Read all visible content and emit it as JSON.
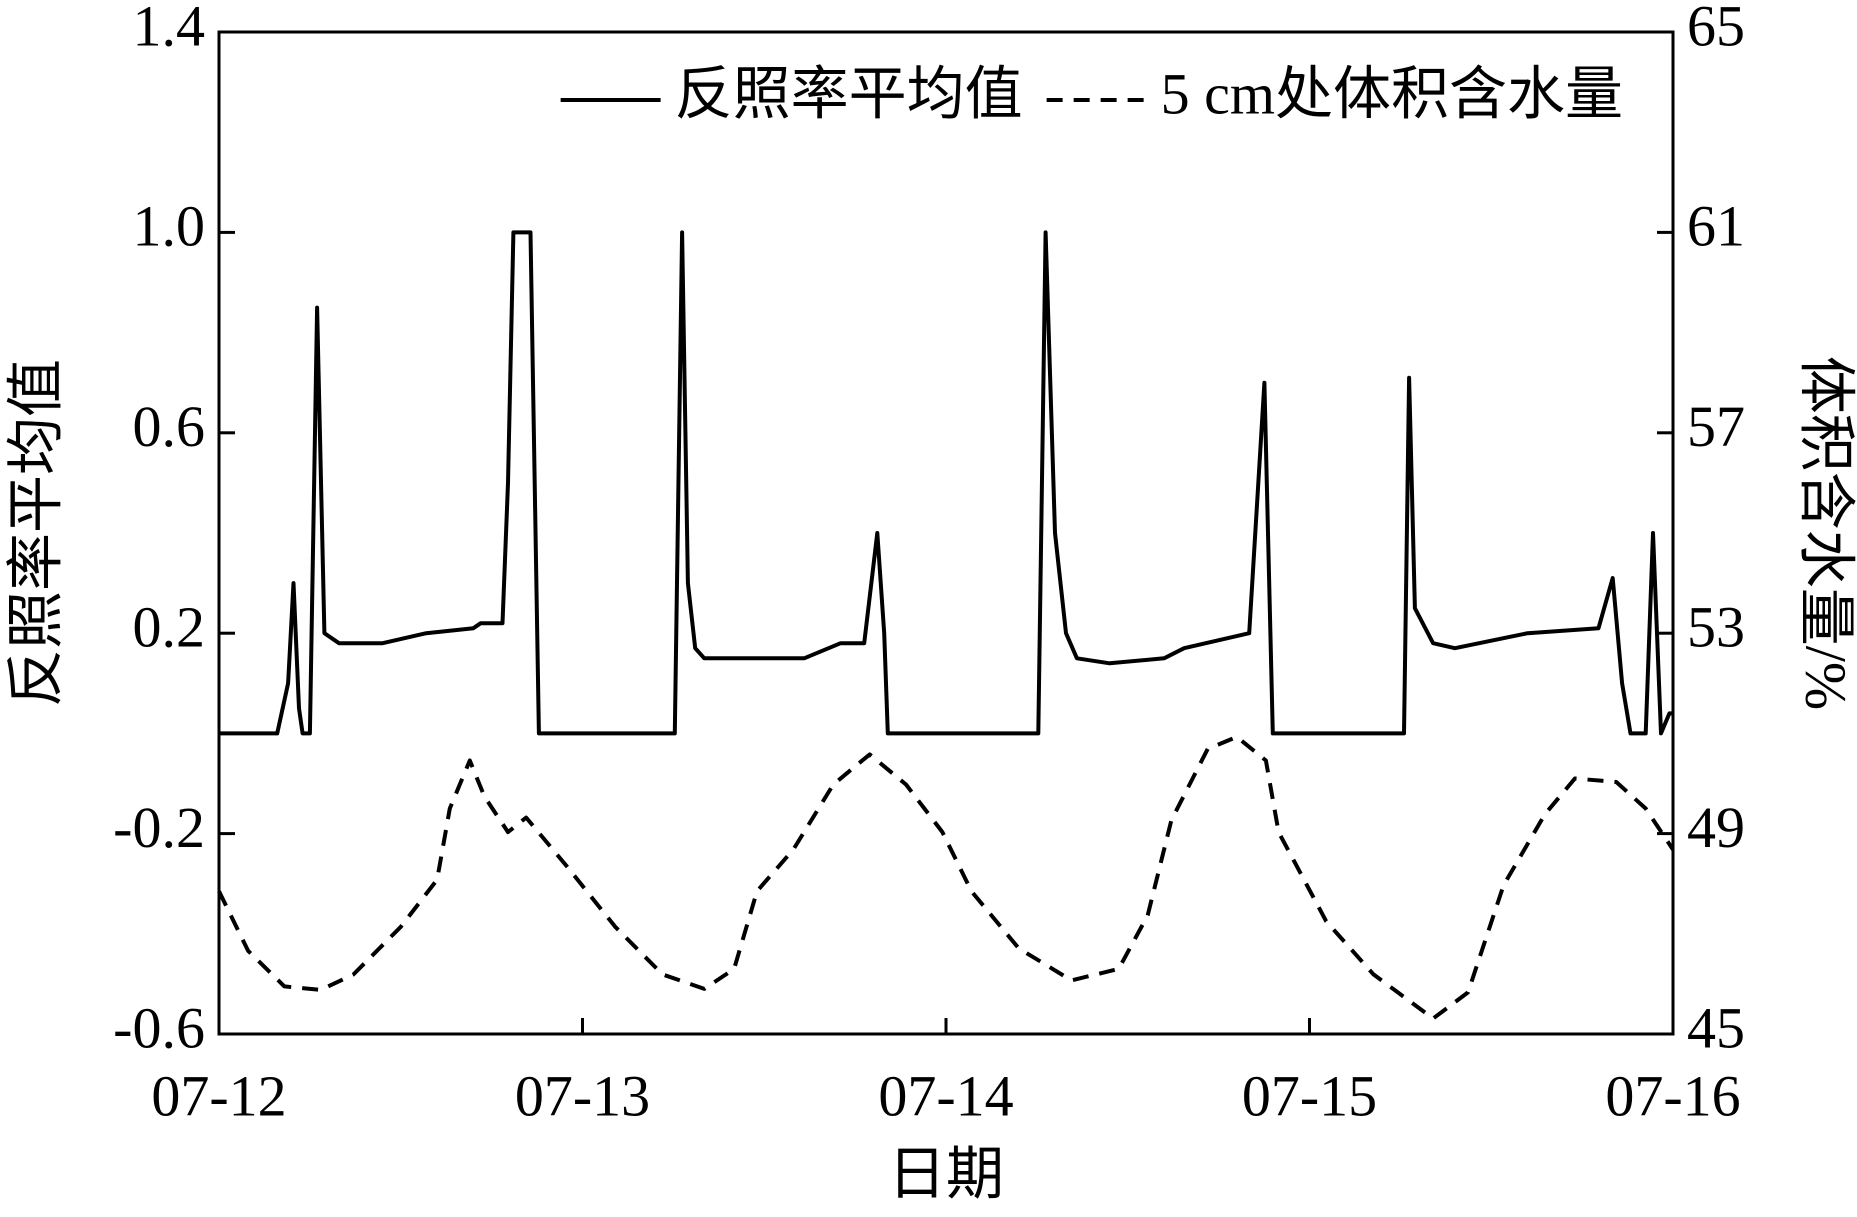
{
  "chart_data": {
    "type": "line",
    "x_label": "日期",
    "y_label": "反照率平均值",
    "y2_label": "体积含水量/%",
    "xlim": [
      0,
      4
    ],
    "xticks": [
      {
        "value": 0,
        "label": "07-12"
      },
      {
        "value": 1,
        "label": "07-13"
      },
      {
        "value": 2,
        "label": "07-14"
      },
      {
        "value": 3,
        "label": "07-15"
      },
      {
        "value": 4,
        "label": "07-16"
      }
    ],
    "ylim": [
      -0.6,
      1.4
    ],
    "yticks": [
      -0.6,
      -0.2,
      0.2,
      0.6,
      {
        "value": 1,
        "label": "1.0"
      },
      1.4
    ],
    "y2lim": [
      45,
      65
    ],
    "y2ticks": [
      45,
      49,
      53,
      57,
      61,
      65
    ],
    "legend": "upper right",
    "series": [
      {
        "name": "反照率平均值",
        "color": "#000000",
        "dash": "solid",
        "x": [
          0,
          0.16,
          0.19,
          0.205,
          0.22,
          0.23,
          0.25,
          0.27,
          0.29,
          0.33,
          0.45,
          0.57,
          0.7,
          0.72,
          0.78,
          0.795,
          0.81,
          0.857,
          0.88,
          1.254,
          1.274,
          1.29,
          1.31,
          1.335,
          1.61,
          1.71,
          1.775,
          1.811,
          1.83,
          1.84,
          2.254,
          2.274,
          2.3,
          2.33,
          2.36,
          2.45,
          2.6,
          2.655,
          2.834,
          2.876,
          2.899,
          3.26,
          3.274,
          3.29,
          3.34,
          3.4,
          3.6,
          3.795,
          3.834,
          3.86,
          3.883,
          3.925,
          3.945,
          3.967,
          3.99,
          4
        ],
        "values": [
          0,
          0,
          0.1,
          0.3,
          0.05,
          0,
          0,
          0.85,
          0.2,
          0.18,
          0.18,
          0.2,
          0.21,
          0.22,
          0.22,
          0.5,
          1.0,
          1.0,
          0,
          0,
          1.0,
          0.3,
          0.17,
          0.15,
          0.15,
          0.18,
          0.18,
          0.4,
          0.2,
          0,
          0,
          1.0,
          0.4,
          0.2,
          0.15,
          0.14,
          0.15,
          0.17,
          0.2,
          0.7,
          0,
          0,
          0.71,
          0.25,
          0.18,
          0.17,
          0.2,
          0.21,
          0.31,
          0.1,
          0,
          0,
          0.4,
          0,
          0.04,
          0.04
        ]
      },
      {
        "name": "5 cm处体积含水量",
        "color": "#000000",
        "dash": "dashed",
        "axis": "y2",
        "x": [
          0,
          0.08,
          0.18,
          0.28,
          0.37,
          0.5,
          0.6,
          0.635,
          0.69,
          0.73,
          0.795,
          0.845,
          0.96,
          1.09,
          1.22,
          1.335,
          1.417,
          1.48,
          1.58,
          1.69,
          1.79,
          1.89,
          1.99,
          2.07,
          2.2,
          2.345,
          2.475,
          2.555,
          2.62,
          2.72,
          2.8,
          2.88,
          2.915,
          3.046,
          3.176,
          3.34,
          3.436,
          3.534,
          3.648,
          3.73,
          3.844,
          3.925,
          4
        ],
        "values": [
          47.85,
          46.66,
          45.95,
          45.88,
          46.19,
          47.14,
          48.08,
          49.5,
          50.46,
          49.74,
          49.03,
          49.32,
          48.32,
          47.14,
          46.19,
          45.9,
          46.3,
          47.85,
          48.68,
          49.98,
          50.58,
          49.98,
          49.03,
          47.85,
          46.71,
          46.07,
          46.3,
          47.37,
          49.27,
          50.69,
          50.93,
          50.46,
          49.03,
          47.25,
          46.19,
          45.31,
          45.83,
          47.97,
          49.39,
          50.1,
          50.03,
          49.5,
          48.68
        ]
      }
    ]
  }
}
